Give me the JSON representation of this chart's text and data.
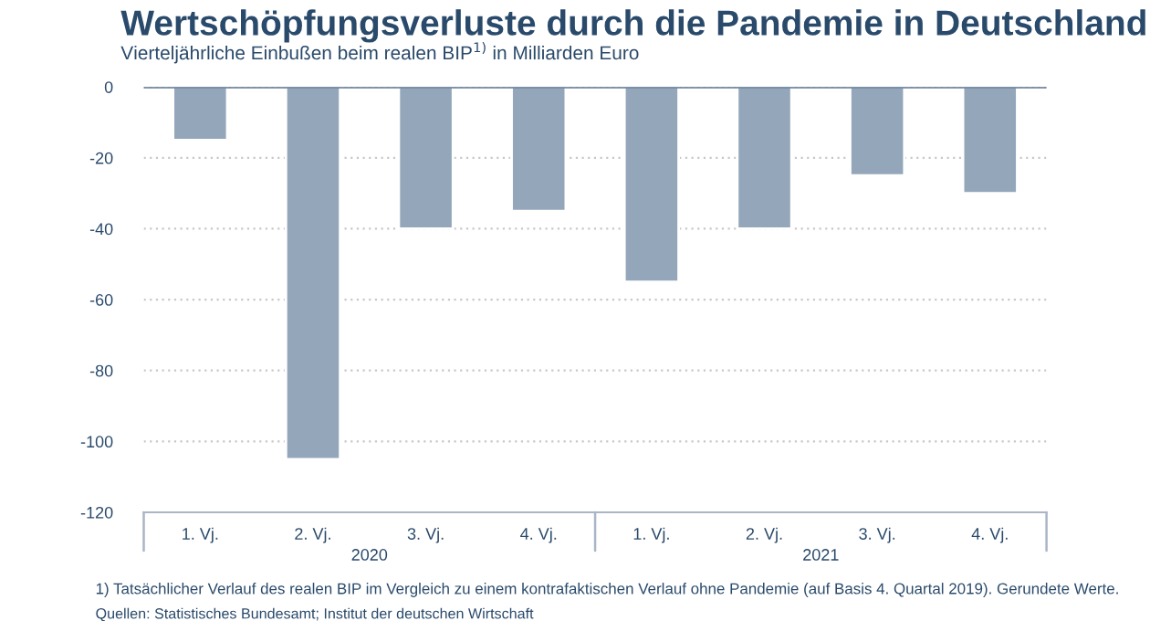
{
  "chart_data": {
    "type": "bar",
    "title": "Wertschöpfungsverluste durch die Pandemie in Deutschland",
    "subtitle": "Vierteljährliche Einbußen beim realen BIP$^{1)}$ in Milliarden Euro",
    "categories": [
      "1. Vj.",
      "2. Vj.",
      "3. Vj.",
      "4. Vj.",
      "1. Vj.",
      "2. Vj.",
      "3. Vj.",
      "4. Vj."
    ],
    "values": [
      -15,
      -105,
      -40,
      -35,
      -55,
      -40,
      -25,
      -30
    ],
    "color": "#94a7ba",
    "ylim": [
      -120,
      0
    ],
    "yticks": [
      {
        "value": -120,
        "label": "-120"
      },
      {
        "value": -100,
        "label": "-100"
      },
      {
        "value": -80,
        "label": "-80"
      },
      {
        "value": -60,
        "label": "-60"
      },
      {
        "value": -40,
        "label": "-40"
      },
      {
        "value": -20,
        "label": "-20"
      },
      0
    ],
    "grid": "y",
    "annotations": [
      "2020",
      "2021",
      "1) Tatsächlicher Verlauf des realen BIP im Vergleich zu einem kontrafaktischen Verlauf ohne Pandemie (auf Basis 4. Quartal 2019). Gerundete Werte.",
      "Quellen: Statistisches Bundesamt; Institut der deutschen Wirtschaft"
    ]
  }
}
